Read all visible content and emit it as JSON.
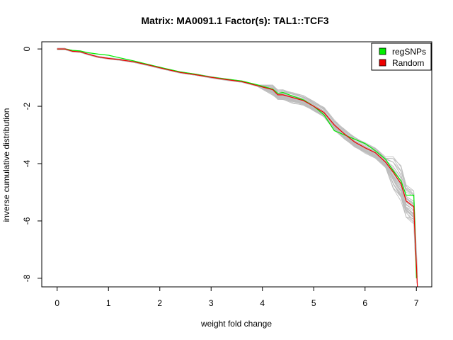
{
  "chart_data": {
    "type": "line",
    "title": "Matrix: MA0091.1 Factor(s): TAL1::TCF3",
    "xlabel": "weight fold change",
    "ylabel": "inverse cumulative distribution",
    "xlim": [
      -0.3,
      7.3
    ],
    "ylim": [
      -8.3,
      0.25
    ],
    "x_ticks": [
      0,
      1,
      2,
      3,
      4,
      5,
      6,
      7
    ],
    "y_ticks": [
      0,
      -2,
      -4,
      -6,
      -8
    ],
    "grid": false,
    "legend_position": "top-right",
    "series": [
      {
        "name": "regSNPs",
        "color": "#00ee00",
        "points": [
          [
            0.0,
            0.0
          ],
          [
            0.15,
            0.0
          ],
          [
            0.3,
            -0.05
          ],
          [
            0.45,
            -0.07
          ],
          [
            0.6,
            -0.13
          ],
          [
            0.8,
            -0.18
          ],
          [
            1.0,
            -0.22
          ],
          [
            1.2,
            -0.3
          ],
          [
            1.5,
            -0.42
          ],
          [
            1.8,
            -0.55
          ],
          [
            2.1,
            -0.68
          ],
          [
            2.4,
            -0.8
          ],
          [
            2.7,
            -0.88
          ],
          [
            3.0,
            -0.98
          ],
          [
            3.3,
            -1.05
          ],
          [
            3.6,
            -1.12
          ],
          [
            3.9,
            -1.25
          ],
          [
            4.2,
            -1.4
          ],
          [
            4.3,
            -1.55
          ],
          [
            4.4,
            -1.52
          ],
          [
            4.6,
            -1.65
          ],
          [
            4.8,
            -1.78
          ],
          [
            5.0,
            -2.0
          ],
          [
            5.2,
            -2.3
          ],
          [
            5.4,
            -2.85
          ],
          [
            5.6,
            -3.0
          ],
          [
            5.8,
            -3.15
          ],
          [
            6.0,
            -3.3
          ],
          [
            6.2,
            -3.55
          ],
          [
            6.4,
            -3.85
          ],
          [
            6.55,
            -4.25
          ],
          [
            6.7,
            -4.6
          ],
          [
            6.8,
            -5.1
          ],
          [
            6.95,
            -5.1
          ],
          [
            6.97,
            -6.1
          ],
          [
            7.0,
            -8.0
          ]
        ]
      },
      {
        "name": "Random",
        "color": "#ee0000",
        "points": [
          [
            0.0,
            0.0
          ],
          [
            0.15,
            0.0
          ],
          [
            0.3,
            -0.08
          ],
          [
            0.45,
            -0.1
          ],
          [
            0.6,
            -0.18
          ],
          [
            0.8,
            -0.28
          ],
          [
            1.0,
            -0.33
          ],
          [
            1.2,
            -0.37
          ],
          [
            1.5,
            -0.45
          ],
          [
            1.8,
            -0.57
          ],
          [
            2.1,
            -0.7
          ],
          [
            2.4,
            -0.82
          ],
          [
            2.7,
            -0.9
          ],
          [
            3.0,
            -0.99
          ],
          [
            3.3,
            -1.07
          ],
          [
            3.6,
            -1.14
          ],
          [
            3.9,
            -1.28
          ],
          [
            4.2,
            -1.42
          ],
          [
            4.3,
            -1.6
          ],
          [
            4.4,
            -1.6
          ],
          [
            4.6,
            -1.7
          ],
          [
            4.8,
            -1.8
          ],
          [
            5.0,
            -2.0
          ],
          [
            5.2,
            -2.22
          ],
          [
            5.4,
            -2.65
          ],
          [
            5.6,
            -2.97
          ],
          [
            5.8,
            -3.25
          ],
          [
            6.0,
            -3.45
          ],
          [
            6.2,
            -3.62
          ],
          [
            6.4,
            -3.95
          ],
          [
            6.55,
            -4.3
          ],
          [
            6.7,
            -4.7
          ],
          [
            6.8,
            -5.3
          ],
          [
            6.95,
            -5.5
          ],
          [
            6.97,
            -6.4
          ],
          [
            7.02,
            -8.3
          ]
        ]
      }
    ]
  }
}
